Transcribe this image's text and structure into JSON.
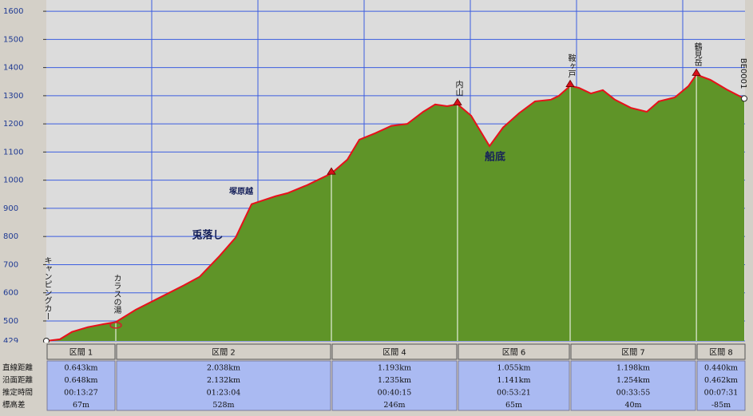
{
  "chart_data": {
    "type": "area",
    "x": [
      0,
      0.134,
      0.252,
      0.409,
      0.566,
      0.684,
      0.881,
      1.117,
      1.352,
      1.51,
      1.706,
      1.864,
      2.021,
      2.139,
      2.257,
      2.375,
      2.571,
      2.807,
      2.964,
      3.082,
      3.239,
      3.397,
      3.554,
      3.711,
      3.829,
      3.947,
      4.049,
      4.183,
      4.364,
      4.497,
      4.655,
      4.812,
      4.969,
      5.048,
      5.158,
      5.244,
      5.362,
      5.48,
      5.598,
      5.756,
      5.913,
      6.031,
      6.189,
      6.322,
      6.401,
      6.542,
      6.7,
      6.872
    ],
    "y": [
      429,
      435,
      461,
      478,
      489,
      496,
      540,
      583,
      626,
      657,
      731,
      796,
      915,
      929,
      943,
      954,
      983,
      1024,
      1073,
      1144,
      1167,
      1193,
      1200,
      1243,
      1269,
      1263,
      1270,
      1229,
      1121,
      1187,
      1238,
      1280,
      1286,
      1300,
      1335,
      1328,
      1308,
      1320,
      1286,
      1257,
      1243,
      1280,
      1294,
      1334,
      1375,
      1356,
      1322,
      1290
    ],
    "point_labels": [
      "キャンピングカー",
      null,
      null,
      null,
      null,
      "カラスの湯",
      null,
      null,
      null,
      null,
      null,
      null,
      null,
      null,
      null,
      null,
      null,
      null,
      null,
      null,
      null,
      null,
      null,
      null,
      null,
      null,
      "内山",
      null,
      null,
      null,
      null,
      null,
      null,
      null,
      "鞍ヶ戸",
      null,
      null,
      null,
      null,
      null,
      null,
      null,
      null,
      null,
      "鶴見岳",
      null,
      null,
      "BE0001"
    ],
    "markers": [
      "circle",
      null,
      null,
      null,
      null,
      "spring",
      null,
      null,
      null,
      null,
      null,
      null,
      null,
      null,
      null,
      null,
      null,
      "triangle",
      null,
      null,
      null,
      null,
      null,
      null,
      null,
      null,
      "triangle",
      null,
      null,
      null,
      null,
      null,
      null,
      null,
      "triangle",
      null,
      null,
      null,
      null,
      null,
      null,
      null,
      null,
      null,
      "triangle",
      null,
      null,
      "circle"
    ],
    "annotations": [
      "塚原越",
      "兎落し",
      "船底"
    ],
    "xlim": [
      0,
      6.872
    ],
    "ylim": [
      429,
      1640
    ],
    "yticks": [
      429,
      500,
      600,
      700,
      800,
      900,
      1000,
      1100,
      1200,
      1300,
      1400,
      1500,
      1600
    ],
    "grid": true,
    "color": "#e8101a",
    "fill": "#5f9428"
  },
  "table": {
    "row_headers": [
      "直線距離",
      "沿面距離",
      "推定時間",
      "標高差"
    ],
    "sections": [
      {
        "name": "区間 1",
        "values": [
          "0.643km",
          "0.648km",
          "00:13:27",
          "67m"
        ]
      },
      {
        "name": "区間 2",
        "values": [
          "2.038km",
          "2.132km",
          "01:23:04",
          "528m"
        ]
      },
      {
        "name": "区間 4",
        "values": [
          "1.193km",
          "1.235km",
          "00:40:15",
          "246m"
        ]
      },
      {
        "name": "区間 6",
        "values": [
          "1.055km",
          "1.141km",
          "00:53:21",
          "65m"
        ]
      },
      {
        "name": "区間 7",
        "values": [
          "1.198km",
          "1.254km",
          "00:33:55",
          "40m"
        ]
      },
      {
        "name": "区間 8",
        "values": [
          "0.440km",
          "0.462km",
          "00:07:31",
          "-85m"
        ]
      }
    ]
  }
}
